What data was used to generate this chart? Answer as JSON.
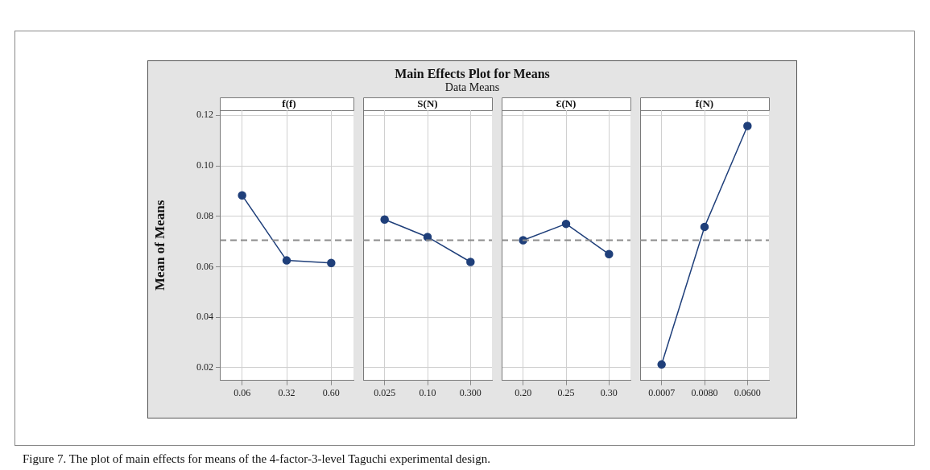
{
  "chart_data": [
    {
      "type": "other",
      "title": "Main Effects Plot for Means",
      "subtitle": "Data Means",
      "annotations": [
        "Figure 7. The plot of main effects for means of the 4-factor-3-level Taguchi experimental design."
      ]
    },
    {
      "type": "line",
      "title": "f(f)",
      "ylabel": "Mean of Means",
      "categories": [
        "0.06",
        "0.32",
        "0.60"
      ],
      "series": [
        {
          "color": "#1f3f7a",
          "values": [
            0.0883,
            0.0625,
            0.0615
          ]
        }
      ],
      "ylim": [
        0.015,
        0.122
      ],
      "yticks": [
        {
          "value": 0.02,
          "label": "0.02"
        },
        {
          "value": 0.04,
          "label": "0.04"
        },
        {
          "value": 0.06,
          "label": "0.06"
        },
        {
          "value": 0.08,
          "label": "0.08"
        },
        {
          "value": 0.1,
          "label": "0.10"
        },
        {
          "value": 0.12,
          "label": "0.12"
        }
      ],
      "grid": true,
      "marker": "circle",
      "ref_lines": [
        {
          "axis": "y",
          "value": 0.0705,
          "color": "#8c8c8c",
          "line_style": "dashed"
        }
      ]
    },
    {
      "type": "line",
      "title": "S(N)",
      "categories": [
        "0.025",
        "0.10",
        "0.300"
      ],
      "series": [
        {
          "color": "#1f3f7a",
          "values": [
            0.0787,
            0.0718,
            0.0619
          ]
        }
      ],
      "ylim": [
        0.015,
        0.122
      ],
      "yticks": [
        0.02,
        0.04,
        0.06,
        0.08,
        0.1,
        0.12
      ],
      "grid": true,
      "marker": "circle",
      "tick_labels": "x",
      "ref_lines": [
        {
          "axis": "y",
          "value": 0.0705,
          "color": "#8c8c8c",
          "line_style": "dashed"
        }
      ]
    },
    {
      "type": "line",
      "title": "Ɛ(N)",
      "categories": [
        "0.20",
        "0.25",
        "0.30"
      ],
      "series": [
        {
          "color": "#1f3f7a",
          "values": [
            0.0705,
            0.077,
            0.065
          ]
        }
      ],
      "ylim": [
        0.015,
        0.122
      ],
      "yticks": [
        0.02,
        0.04,
        0.06,
        0.08,
        0.1,
        0.12
      ],
      "grid": true,
      "marker": "circle",
      "tick_labels": "x",
      "ref_lines": [
        {
          "axis": "y",
          "value": 0.0705,
          "color": "#8c8c8c",
          "line_style": "dashed"
        }
      ]
    },
    {
      "type": "line",
      "title": "f(N)",
      "categories": [
        "0.0007",
        "0.0080",
        "0.0600"
      ],
      "series": [
        {
          "color": "#1f3f7a",
          "values": [
            0.0213,
            0.0758,
            0.1158
          ]
        }
      ],
      "ylim": [
        0.015,
        0.122
      ],
      "yticks": [
        0.02,
        0.04,
        0.06,
        0.08,
        0.1,
        0.12
      ],
      "grid": true,
      "marker": "circle",
      "tick_labels": "x",
      "ref_lines": [
        {
          "axis": "y",
          "value": 0.0705,
          "color": "#8c8c8c",
          "line_style": "dashed"
        }
      ]
    }
  ]
}
